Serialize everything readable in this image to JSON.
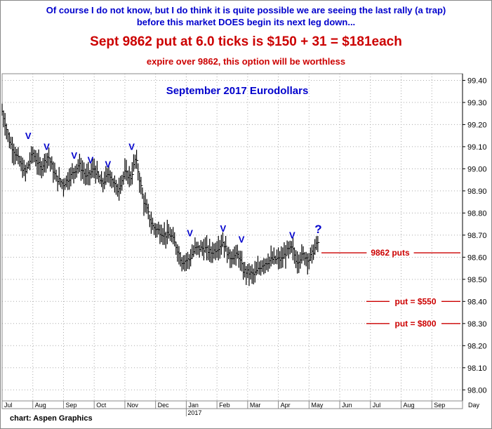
{
  "header": {
    "line1a": "Of course I do not know, but I do think it is quite possible we are seeing the last rally (a trap)",
    "line1b": "before this market DOES begin its next leg down...",
    "line2": "Sept 9862 put at 6.0 ticks is $150 + 31 = $181each",
    "line3": "expire over 9862, this option will be worthless"
  },
  "footer": {
    "credit": "chart: Aspen Graphics"
  },
  "colors": {
    "price": "#000000",
    "markers": "#0000cc",
    "levels": "#cc0000",
    "grid": "#aaaaaa"
  },
  "chart_data": {
    "type": "bar",
    "title": "September 2017 Eurodollars",
    "ylim": [
      97.95,
      99.43
    ],
    "y_ticks": [
      "98.00",
      "98.10",
      "98.20",
      "98.30",
      "98.40",
      "98.50",
      "98.60",
      "98.70",
      "98.80",
      "98.90",
      "99.00",
      "99.10",
      "99.20",
      "99.30",
      "99.40"
    ],
    "y_tick_values": [
      98.0,
      98.1,
      98.2,
      98.3,
      98.4,
      98.5,
      98.6,
      98.7,
      98.8,
      98.9,
      99.0,
      99.1,
      99.2,
      99.3,
      99.4
    ],
    "x_months": [
      "Jul",
      "Aug",
      "Sep",
      "Oct",
      "Nov",
      "Dec",
      "Jan",
      "Feb",
      "Mar",
      "Apr",
      "May",
      "Jun",
      "Jul",
      "Aug",
      "Sep"
    ],
    "x_axis_unit": "Day",
    "year_label": "2017",
    "grid": true,
    "x_month_index_range": [
      0,
      15
    ],
    "price_path": [
      [
        0.0,
        99.26
      ],
      [
        0.25,
        99.12
      ],
      [
        0.5,
        99.05
      ],
      [
        0.75,
        98.98
      ],
      [
        1.0,
        99.07
      ],
      [
        1.25,
        99.0
      ],
      [
        1.5,
        99.06
      ],
      [
        1.75,
        98.96
      ],
      [
        2.0,
        98.93
      ],
      [
        2.25,
        98.97
      ],
      [
        2.5,
        99.02
      ],
      [
        2.75,
        98.96
      ],
      [
        3.0,
        99.0
      ],
      [
        3.25,
        98.93
      ],
      [
        3.5,
        98.98
      ],
      [
        3.75,
        98.9
      ],
      [
        4.0,
        98.98
      ],
      [
        4.2,
        98.96
      ],
      [
        4.35,
        99.05
      ],
      [
        4.6,
        98.86
      ],
      [
        4.9,
        98.74
      ],
      [
        5.3,
        98.7
      ],
      [
        5.5,
        98.7
      ],
      [
        5.7,
        98.64
      ],
      [
        5.85,
        98.58
      ],
      [
        6.1,
        98.59
      ],
      [
        6.3,
        98.64
      ],
      [
        6.6,
        98.64
      ],
      [
        6.8,
        98.62
      ],
      [
        7.0,
        98.64
      ],
      [
        7.2,
        98.67
      ],
      [
        7.4,
        98.6
      ],
      [
        7.7,
        98.61
      ],
      [
        7.85,
        98.54
      ],
      [
        8.2,
        98.52
      ],
      [
        8.5,
        98.57
      ],
      [
        8.8,
        98.59
      ],
      [
        9.1,
        98.59
      ],
      [
        9.3,
        98.63
      ],
      [
        9.45,
        98.64
      ],
      [
        9.6,
        98.58
      ],
      [
        9.8,
        98.61
      ],
      [
        10.0,
        98.59
      ],
      [
        10.15,
        98.63
      ],
      [
        10.3,
        98.67
      ]
    ],
    "v_markers": [
      {
        "x": 0.85,
        "y": 99.11,
        "label": "V"
      },
      {
        "x": 1.45,
        "y": 99.06,
        "label": "V"
      },
      {
        "x": 2.35,
        "y": 99.02,
        "label": "V"
      },
      {
        "x": 2.88,
        "y": 99.0,
        "label": "V"
      },
      {
        "x": 3.45,
        "y": 98.98,
        "label": "V"
      },
      {
        "x": 4.22,
        "y": 99.06,
        "label": "V"
      },
      {
        "x": 6.12,
        "y": 98.67,
        "label": "V"
      },
      {
        "x": 7.2,
        "y": 98.69,
        "label": "V"
      },
      {
        "x": 7.8,
        "y": 98.64,
        "label": "V"
      },
      {
        "x": 9.45,
        "y": 98.66,
        "label": "V"
      },
      {
        "x": 10.3,
        "y": 98.69,
        "label": "?"
      }
    ],
    "levels": [
      {
        "label": "9862 puts",
        "y": 98.62
      },
      {
        "label": "put = $550",
        "y": 98.4
      },
      {
        "label": "put = $800",
        "y": 98.3
      }
    ]
  }
}
